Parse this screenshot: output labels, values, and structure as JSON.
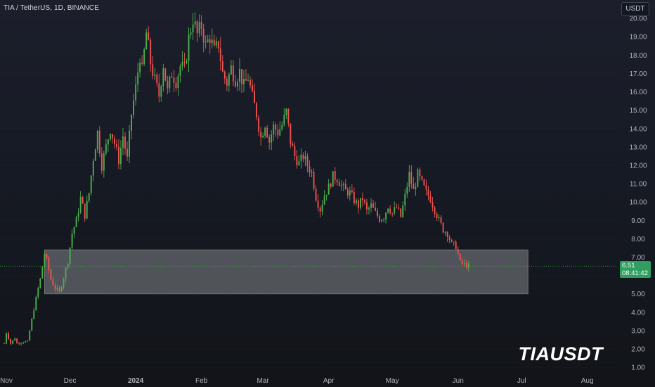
{
  "header": {
    "symbol_line": "TIA / TetherUS, 1D, BINANCE",
    "currency": "USDT",
    "watermark": "TIAUSDT"
  },
  "last_price": {
    "value": "6.51",
    "countdown": "08:41:42"
  },
  "colors": {
    "background": "#131722",
    "up_candle": "#26a69a",
    "up_candle_body": "#4caf50",
    "down_candle": "#ef5350",
    "zone_fill": "#ffffff",
    "price_tag": "#2f9e60",
    "axis_text": "#b2b5be"
  },
  "chart_data": {
    "type": "candlestick",
    "ylim": [
      0.7,
      21.0
    ],
    "yticks": [
      "1.00",
      "2.00",
      "3.00",
      "4.00",
      "5.00",
      "6.00",
      "7.00",
      "8.00",
      "9.00",
      "10.00",
      "11.00",
      "12.00",
      "13.00",
      "14.00",
      "15.00",
      "16.00",
      "17.00",
      "18.00",
      "19.00",
      "20.00"
    ],
    "xticks": [
      "Nov",
      "Dec",
      "2024",
      "Feb",
      "Mar",
      "Apr",
      "May",
      "Jun",
      "Jul",
      "Aug"
    ],
    "xtick_days": [
      0,
      30,
      61,
      92,
      121,
      152,
      182,
      213,
      243,
      274
    ],
    "x_range_days": [
      -3,
      288
    ],
    "support_zone": {
      "start_day": 18,
      "end_day": 246,
      "low": 5.0,
      "high": 7.4
    },
    "current_price": 6.51,
    "path": [
      [
        -1,
        2.3
      ],
      [
        0,
        2.9
      ],
      [
        2,
        2.3
      ],
      [
        4,
        2.6
      ],
      [
        5,
        2.3
      ],
      [
        8,
        2.4
      ],
      [
        10,
        2.4
      ],
      [
        11,
        3.0
      ],
      [
        13,
        4.2
      ],
      [
        15,
        5.3
      ],
      [
        16,
        5.8
      ],
      [
        18,
        7.2
      ],
      [
        19,
        6.8
      ],
      [
        21,
        5.8
      ],
      [
        23,
        5.3
      ],
      [
        25,
        5.1
      ],
      [
        27,
        5.9
      ],
      [
        29,
        6.8
      ],
      [
        31,
        8.3
      ],
      [
        33,
        9.0
      ],
      [
        35,
        10.2
      ],
      [
        37,
        9.3
      ],
      [
        39,
        10.5
      ],
      [
        41,
        12.4
      ],
      [
        43,
        13.8
      ],
      [
        45,
        12.0
      ],
      [
        47,
        13.0
      ],
      [
        49,
        14.0
      ],
      [
        51,
        13.2
      ],
      [
        53,
        12.3
      ],
      [
        55,
        13.6
      ],
      [
        57,
        12.3
      ],
      [
        59,
        14.8
      ],
      [
        61,
        16.2
      ],
      [
        63,
        18.0
      ],
      [
        64,
        17.1
      ],
      [
        66,
        19.2
      ],
      [
        68,
        17.6
      ],
      [
        70,
        16.6
      ],
      [
        72,
        15.8
      ],
      [
        74,
        17.5
      ],
      [
        76,
        16.0
      ],
      [
        78,
        17.0
      ],
      [
        80,
        16.6
      ],
      [
        82,
        17.4
      ],
      [
        84,
        17.2
      ],
      [
        86,
        18.9
      ],
      [
        88,
        20.0
      ],
      [
        90,
        19.1
      ],
      [
        92,
        19.6
      ],
      [
        94,
        18.5
      ],
      [
        96,
        19.0
      ],
      [
        98,
        18.2
      ],
      [
        100,
        18.6
      ],
      [
        102,
        17.0
      ],
      [
        104,
        16.5
      ],
      [
        106,
        17.3
      ],
      [
        108,
        16.7
      ],
      [
        110,
        17.1
      ],
      [
        112,
        16.3
      ],
      [
        114,
        16.8
      ],
      [
        116,
        15.7
      ],
      [
        118,
        14.8
      ],
      [
        120,
        13.5
      ],
      [
        122,
        14.3
      ],
      [
        124,
        13.3
      ],
      [
        126,
        14.1
      ],
      [
        128,
        13.8
      ],
      [
        130,
        14.2
      ],
      [
        132,
        14.9
      ],
      [
        134,
        13.3
      ],
      [
        136,
        12.5
      ],
      [
        138,
        12.1
      ],
      [
        140,
        12.5
      ],
      [
        142,
        12.0
      ],
      [
        144,
        11.6
      ],
      [
        146,
        10.3
      ],
      [
        148,
        9.6
      ],
      [
        150,
        10.4
      ],
      [
        152,
        10.8
      ],
      [
        154,
        11.4
      ],
      [
        156,
        11.3
      ],
      [
        158,
        10.9
      ],
      [
        160,
        10.6
      ],
      [
        162,
        10.5
      ],
      [
        164,
        10.1
      ],
      [
        166,
        9.8
      ],
      [
        168,
        10.2
      ],
      [
        170,
        9.5
      ],
      [
        172,
        9.8
      ],
      [
        174,
        9.4
      ],
      [
        176,
        9.1
      ],
      [
        178,
        9.2
      ],
      [
        180,
        9.8
      ],
      [
        182,
        9.4
      ],
      [
        184,
        9.7
      ],
      [
        186,
        9.2
      ],
      [
        188,
        10.3
      ],
      [
        190,
        11.5
      ],
      [
        192,
        10.6
      ],
      [
        194,
        11.5
      ],
      [
        196,
        11.0
      ],
      [
        198,
        10.5
      ],
      [
        200,
        10.2
      ],
      [
        202,
        9.6
      ],
      [
        204,
        9.0
      ],
      [
        206,
        8.5
      ],
      [
        208,
        8.3
      ],
      [
        210,
        7.7
      ],
      [
        212,
        7.6
      ],
      [
        214,
        6.7
      ],
      [
        216,
        6.6
      ],
      [
        218,
        6.51
      ]
    ]
  }
}
